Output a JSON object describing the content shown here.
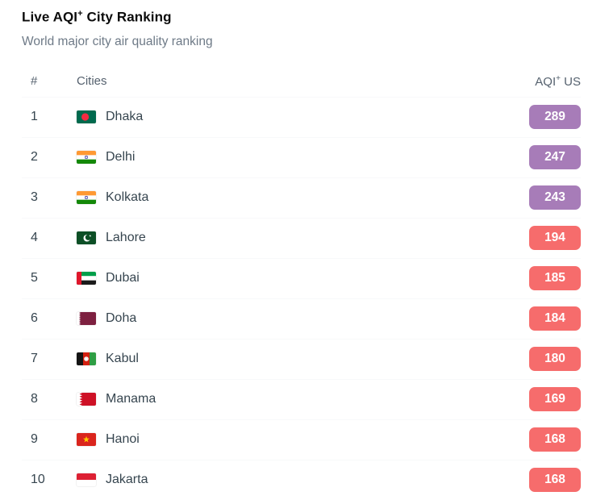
{
  "page": {
    "title_pre": "Live AQI",
    "title_sup": "+",
    "title_post": " City Ranking",
    "subtitle": "World major city air quality ranking"
  },
  "table": {
    "col_rank": "#",
    "col_city": "Cities",
    "col_aqi_pre": "AQI",
    "col_aqi_sup": "+",
    "col_aqi_post": " US"
  },
  "colors": {
    "very_unhealthy": "#a77cb8",
    "unhealthy": "#f66c6c"
  },
  "rows": [
    {
      "rank": "1",
      "city": "Dhaka",
      "country": "Bangladesh",
      "flag": "bangladesh",
      "aqi": "289",
      "level": "very_unhealthy"
    },
    {
      "rank": "2",
      "city": "Delhi",
      "country": "India",
      "flag": "india",
      "aqi": "247",
      "level": "very_unhealthy"
    },
    {
      "rank": "3",
      "city": "Kolkata",
      "country": "India",
      "flag": "india",
      "aqi": "243",
      "level": "very_unhealthy"
    },
    {
      "rank": "4",
      "city": "Lahore",
      "country": "Pakistan",
      "flag": "pakistan",
      "aqi": "194",
      "level": "unhealthy"
    },
    {
      "rank": "5",
      "city": "Dubai",
      "country": "United Arab Emirates",
      "flag": "uae",
      "aqi": "185",
      "level": "unhealthy"
    },
    {
      "rank": "6",
      "city": "Doha",
      "country": "Qatar",
      "flag": "qatar",
      "aqi": "184",
      "level": "unhealthy"
    },
    {
      "rank": "7",
      "city": "Kabul",
      "country": "Afghanistan",
      "flag": "afghanistan",
      "aqi": "180",
      "level": "unhealthy"
    },
    {
      "rank": "8",
      "city": "Manama",
      "country": "Bahrain",
      "flag": "bahrain",
      "aqi": "169",
      "level": "unhealthy"
    },
    {
      "rank": "9",
      "city": "Hanoi",
      "country": "Vietnam",
      "flag": "vietnam",
      "aqi": "168",
      "level": "unhealthy"
    },
    {
      "rank": "10",
      "city": "Jakarta",
      "country": "Indonesia",
      "flag": "indonesia",
      "aqi": "168",
      "level": "unhealthy"
    }
  ]
}
